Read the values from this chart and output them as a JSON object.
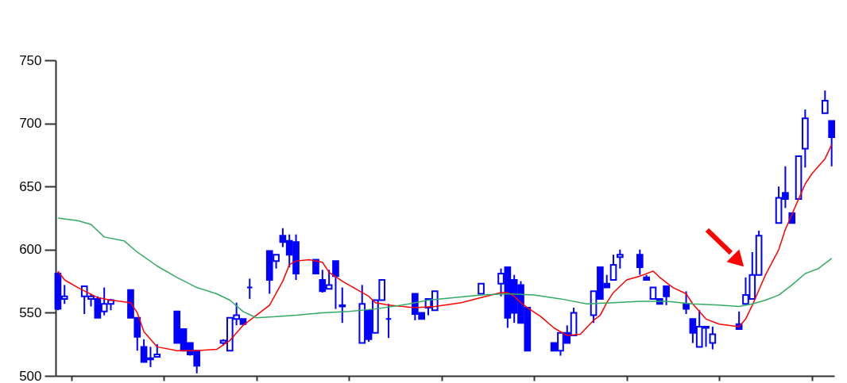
{
  "chart_data": {
    "type": "candlestick",
    "categories": [
      null,
      null,
      null,
      null,
      null,
      null,
      null,
      null,
      null,
      null,
      null,
      null,
      null,
      null,
      null,
      null,
      null,
      null,
      null,
      null,
      null,
      null,
      null,
      null,
      null,
      null,
      null,
      null,
      null,
      null,
      null,
      null,
      null,
      null,
      null,
      null,
      null,
      null,
      null,
      null,
      null,
      null,
      null,
      null,
      null,
      null,
      null,
      null,
      null,
      null,
      null,
      null,
      null,
      null,
      null,
      null,
      null,
      null,
      null,
      null,
      null,
      null,
      null,
      null,
      null,
      null,
      null,
      null,
      null,
      null,
      null,
      null,
      null,
      null,
      null,
      null,
      null,
      null,
      null,
      null,
      null,
      null,
      null,
      null,
      null,
      null,
      null,
      null,
      null,
      null,
      null,
      null,
      null,
      null,
      null,
      null,
      null,
      null,
      null,
      null,
      null,
      null,
      null,
      null,
      null,
      null,
      null,
      null,
      null,
      null,
      null,
      null,
      null,
      null,
      null,
      null,
      null,
      null
    ],
    "ohlc": [
      [
        581,
        582,
        552,
        553
      ],
      [
        561,
        572,
        557,
        563
      ],
      null,
      null,
      [
        563,
        571,
        549,
        571
      ],
      [
        561,
        565,
        555,
        563
      ],
      [
        561,
        563,
        546,
        546
      ],
      [
        551,
        570,
        548,
        557
      ],
      [
        557,
        561,
        552,
        560
      ],
      null,
      null,
      [
        568,
        568,
        546,
        546
      ],
      [
        546,
        546,
        520,
        531
      ],
      [
        523,
        529,
        511,
        511
      ],
      [
        513,
        523,
        507,
        514
      ],
      [
        515,
        525,
        515,
        517
      ],
      null,
      null,
      [
        551,
        551,
        526,
        526
      ],
      [
        537,
        537,
        520,
        520
      ],
      [
        526,
        526,
        516,
        517
      ],
      [
        520,
        520,
        502,
        508
      ],
      null,
      null,
      null,
      [
        526,
        529,
        524,
        528
      ],
      [
        520,
        546,
        520,
        546
      ],
      [
        545,
        558,
        540,
        548
      ],
      [
        545,
        545,
        541,
        541
      ],
      [
        570,
        577,
        561,
        570
      ],
      null,
      null,
      [
        599,
        599,
        565,
        576
      ],
      [
        591,
        596,
        585,
        596
      ],
      [
        611,
        617,
        602,
        606
      ],
      [
        607,
        612,
        586,
        596
      ],
      [
        606,
        612,
        576,
        581
      ],
      null,
      null,
      [
        592,
        592,
        581,
        581
      ],
      [
        576,
        584,
        566,
        567
      ],
      [
        569,
        584,
        569,
        572
      ],
      [
        591,
        591,
        553,
        579
      ],
      [
        556,
        570,
        542,
        555
      ],
      null,
      null,
      [
        526,
        572,
        526,
        557
      ],
      [
        552,
        552,
        527,
        529
      ],
      [
        534,
        560,
        534,
        560
      ],
      [
        560,
        576,
        560,
        576
      ],
      [
        545,
        557,
        530,
        545
      ],
      null,
      null,
      null,
      [
        565,
        565,
        544,
        549
      ],
      [
        550,
        550,
        545,
        545
      ],
      [
        554,
        561,
        548,
        561
      ],
      [
        552,
        567,
        552,
        567
      ],
      null,
      null,
      null,
      null,
      null,
      null,
      [
        565,
        573,
        565,
        573
      ],
      null,
      null,
      [
        573,
        585,
        563,
        581
      ],
      [
        586,
        586,
        538,
        546
      ],
      [
        576,
        580,
        542,
        550
      ],
      [
        572,
        575,
        542,
        542
      ],
      [
        554,
        554,
        520,
        520
      ],
      null,
      null,
      null,
      [
        526,
        526,
        520,
        520
      ],
      [
        520,
        534,
        516,
        534
      ],
      [
        534,
        540,
        526,
        526
      ],
      [
        532,
        554,
        532,
        550
      ],
      null,
      null,
      [
        548,
        567,
        542,
        567
      ],
      [
        586,
        586,
        561,
        561
      ],
      [
        573,
        580,
        570,
        570
      ],
      [
        576,
        596,
        576,
        588
      ],
      [
        594,
        600,
        585,
        596
      ],
      null,
      null,
      [
        596,
        600,
        580,
        586
      ],
      [
        578,
        580,
        576,
        576
      ],
      [
        561,
        570,
        561,
        570
      ],
      [
        561,
        561,
        557,
        557
      ],
      [
        571,
        571,
        556,
        563
      ],
      null,
      null,
      [
        557,
        567,
        549,
        553
      ],
      [
        545,
        545,
        526,
        534
      ],
      [
        523,
        552,
        523,
        539
      ],
      [
        539,
        539,
        523,
        538
      ],
      [
        526,
        539,
        521,
        533
      ],
      null,
      null,
      null,
      [
        541,
        551,
        537,
        537
      ],
      [
        557,
        578,
        557,
        564
      ],
      [
        561,
        598,
        561,
        580
      ],
      [
        580,
        615,
        580,
        611
      ],
      null,
      null,
      [
        621,
        650,
        621,
        641
      ],
      [
        645,
        666,
        633,
        640
      ],
      [
        629,
        629,
        621,
        621
      ],
      [
        640,
        674,
        640,
        674
      ],
      [
        680,
        711,
        665,
        704
      ],
      null,
      null,
      [
        708,
        726,
        708,
        718
      ],
      [
        702,
        702,
        666,
        689
      ]
    ],
    "color": "#0000ff",
    "series": [
      {
        "type": "line",
        "color": "#ff0000",
        "values": [
          583,
          576,
          null,
          570,
          null,
          null,
          562,
          null,
          560,
          null,
          null,
          558,
          550,
          535,
          null,
          523,
          null,
          null,
          520,
          null,
          null,
          520,
          null,
          null,
          521,
          null,
          528,
          null,
          540,
          null,
          548,
          null,
          556,
          null,
          575,
          588,
          591,
          null,
          592,
          null,
          590,
          582,
          null,
          575,
          null,
          569,
          null,
          563,
          558,
          null,
          556,
          null,
          null,
          null,
          554,
          null,
          null,
          555,
          null,
          null,
          null,
          558,
          null,
          null,
          562,
          null,
          null,
          566,
          566,
          563,
          558,
          554,
          null,
          547,
          null,
          538,
          null,
          532,
          null,
          533,
          null,
          544,
          548,
          558,
          566,
          null,
          576,
          null,
          579,
          null,
          583,
          578,
          null,
          570,
          null,
          565,
          557,
          null,
          545,
          null,
          541,
          null,
          null,
          539,
          545,
          556,
          568,
          580,
          null,
          600,
          616,
          628,
          640,
          652,
          660,
          null,
          672,
          683
        ]
      },
      {
        "type": "line",
        "color": "#33aa66",
        "values": [
          625,
          null,
          null,
          623,
          null,
          620,
          null,
          610,
          null,
          null,
          607,
          null,
          598,
          null,
          null,
          587,
          null,
          null,
          578,
          null,
          null,
          570,
          null,
          null,
          565,
          null,
          560,
          null,
          551,
          null,
          546,
          null,
          null,
          547,
          null,
          null,
          548,
          null,
          null,
          null,
          550,
          null,
          null,
          null,
          551,
          null,
          null,
          null,
          553,
          null,
          null,
          null,
          556,
          null,
          null,
          null,
          560,
          null,
          null,
          null,
          562,
          null,
          null,
          null,
          564,
          null,
          null,
          null,
          565,
          null,
          null,
          null,
          564,
          null,
          null,
          null,
          561,
          null,
          null,
          null,
          557,
          null,
          null,
          null,
          558,
          null,
          null,
          null,
          559,
          null,
          null,
          null,
          559,
          null,
          null,
          null,
          557,
          null,
          null,
          null,
          556,
          null,
          null,
          555,
          null,
          557,
          null,
          560,
          null,
          564,
          null,
          572,
          null,
          581,
          null,
          585,
          null,
          593
        ]
      }
    ],
    "ylim": [
      500,
      750
    ],
    "yticks": [
      500,
      550,
      600,
      650,
      700,
      750
    ],
    "tick_labels": "y",
    "grid": false
  }
}
